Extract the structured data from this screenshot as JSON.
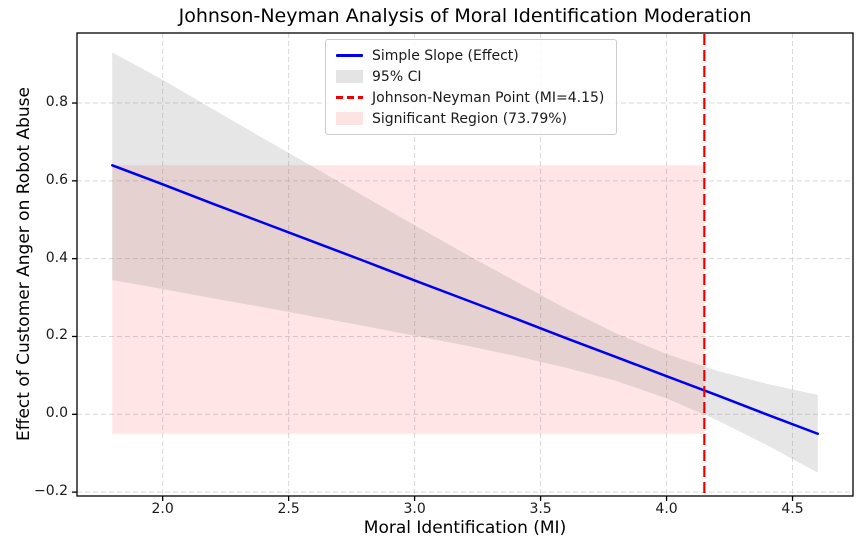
{
  "chart_data": {
    "type": "line",
    "title": "Johnson-Neyman Analysis of Moral Identification Moderation",
    "xlabel": "Moral Identification (MI)",
    "ylabel": "Effect of Customer Anger on Robot Abuse",
    "xlim": [
      1.66,
      4.74
    ],
    "ylim": [
      -0.21,
      0.98
    ],
    "xticks": [
      2.0,
      2.5,
      3.0,
      3.5,
      4.0,
      4.5
    ],
    "xtick_labels": [
      "2.0",
      "2.5",
      "3.0",
      "3.5",
      "4.0",
      "4.5"
    ],
    "yticks": [
      -0.2,
      0.0,
      0.2,
      0.4,
      0.6,
      0.8
    ],
    "ytick_labels": [
      "−0.2",
      "0.0",
      "0.2",
      "0.4",
      "0.6",
      "0.8"
    ],
    "grid": true,
    "x": [
      1.8,
      2.0,
      2.2,
      2.4,
      2.6,
      2.8,
      3.0,
      3.2,
      3.4,
      3.6,
      3.8,
      4.0,
      4.2,
      4.4,
      4.6
    ],
    "series": [
      {
        "name": "Simple Slope (Effect)",
        "color": "#0000ee",
        "values": [
          0.64,
          0.591,
          0.541,
          0.492,
          0.443,
          0.394,
          0.344,
          0.295,
          0.246,
          0.196,
          0.147,
          0.098,
          0.049,
          -0.001,
          -0.05
        ]
      }
    ],
    "ci": {
      "name": "95% CI",
      "color": "#808080",
      "alpha": 0.2,
      "upper": [
        0.93,
        0.86,
        0.784,
        0.709,
        0.635,
        0.56,
        0.486,
        0.413,
        0.342,
        0.272,
        0.208,
        0.155,
        0.112,
        0.078,
        0.05
      ],
      "lower": [
        0.345,
        0.322,
        0.298,
        0.275,
        0.251,
        0.227,
        0.202,
        0.177,
        0.15,
        0.12,
        0.086,
        0.041,
        -0.015,
        -0.08,
        -0.15
      ]
    },
    "jn_point": {
      "name": "Johnson-Neyman Point (MI=4.15)",
      "x": 4.15,
      "color": "#ee0000",
      "style": "dashed"
    },
    "significant_region": {
      "name": "Significant Region (73.79%)",
      "x0": 1.8,
      "x1": 4.15,
      "y0": -0.05,
      "y1": 0.64,
      "color": "#ff0000",
      "alpha": 0.1
    },
    "legend": {
      "position": "upper-center",
      "items": [
        {
          "label": "Simple Slope (Effect)",
          "swatch": "line",
          "color": "#0000ee"
        },
        {
          "label": "95% CI",
          "swatch": "patch",
          "color": "#e4e4e4"
        },
        {
          "label": "Johnson-Neyman Point (MI=4.15)",
          "swatch": "dashed-line",
          "color": "#ee0000"
        },
        {
          "label": "Significant Region (73.79%)",
          "swatch": "patch",
          "color": "#fde4e4"
        }
      ]
    },
    "colors": {
      "grid": "#d9d9d9",
      "spine": "#000000",
      "background": "#ffffff"
    }
  }
}
